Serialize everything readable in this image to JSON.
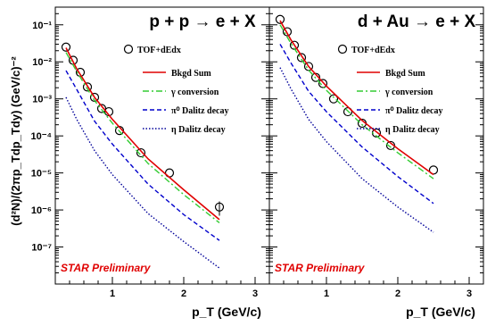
{
  "chart_data": [
    {
      "type": "scatter",
      "title": "p + p → e + X",
      "annotation": "STAR Preliminary",
      "xlabel": "p_T (GeV/c)",
      "ylabel": "(d²N)/(2πp_Tdp_Tdy) (GeV/c)⁻²",
      "xlim": [
        0.2,
        3.2
      ],
      "ylim": [
        1e-08,
        0.3
      ],
      "yscale": "log",
      "xticks": [
        1,
        2,
        3
      ],
      "yticks": [
        1e-07,
        1e-06,
        1e-05,
        0.0001,
        0.001,
        0.01,
        0.1
      ],
      "ytick_labels": [
        "10⁻⁷",
        "10⁻⁶",
        "10⁻⁵",
        "10⁻⁴",
        "10⁻³",
        "10⁻²",
        "10⁻¹"
      ],
      "legend_position": "top-right",
      "series": [
        {
          "name": "TOF+dEdx",
          "style": "open-circle",
          "color": "#000000",
          "x": [
            0.35,
            0.45,
            0.55,
            0.65,
            0.75,
            0.85,
            0.95,
            1.1,
            1.4,
            1.8,
            2.5
          ],
          "y": [
            0.025,
            0.011,
            0.0052,
            0.0021,
            0.0011,
            0.00055,
            0.00045,
            0.00014,
            3.5e-05,
            1e-05,
            1.2e-06
          ],
          "yerr": [
            0,
            0,
            0,
            0,
            0,
            0,
            0,
            0,
            0,
            0,
            5e-07
          ]
        },
        {
          "name": "Bkgd Sum",
          "style": "solid",
          "color": "#e00000",
          "x": [
            0.35,
            0.5,
            0.75,
            1.0,
            1.5,
            2.0,
            2.5
          ],
          "y": [
            0.024,
            0.0065,
            0.0011,
            0.00028,
            2.4e-05,
            3.5e-06,
            5.5e-07
          ]
        },
        {
          "name": "γ conversion",
          "style": "dash-dot",
          "color": "#33cc33",
          "x": [
            0.35,
            0.5,
            0.75,
            1.0,
            1.5,
            2.0,
            2.5
          ],
          "y": [
            0.018,
            0.0055,
            0.0009,
            0.00022,
            1.8e-05,
            2.6e-06,
            4.5e-07
          ]
        },
        {
          "name": "π⁰ Dalitz decay",
          "style": "dashed",
          "color": "#0000cc",
          "x": [
            0.35,
            0.5,
            0.75,
            1.0,
            1.5,
            2.0,
            2.5
          ],
          "y": [
            0.0058,
            0.0018,
            0.00025,
            6e-05,
            5e-06,
            7.5e-07,
            1.5e-07
          ]
        },
        {
          "name": "η Dalitz decay",
          "style": "dotted",
          "color": "#000099",
          "x": [
            0.35,
            0.5,
            0.75,
            1.0,
            1.5,
            2.0,
            2.5
          ],
          "y": [
            0.0011,
            0.00028,
            4e-05,
            9e-06,
            8e-07,
            1.4e-07,
            2.7e-08
          ]
        }
      ]
    },
    {
      "type": "scatter",
      "title": "d + Au → e + X",
      "annotation": "STAR Preliminary",
      "xlabel": "p_T (GeV/c)",
      "ylabel": "",
      "xlim": [
        0.2,
        3.2
      ],
      "ylim": [
        1e-08,
        0.3
      ],
      "yscale": "log",
      "xticks": [
        1,
        2,
        3
      ],
      "legend_position": "top-right",
      "series": [
        {
          "name": "TOF+dEdx",
          "style": "open-circle",
          "color": "#000000",
          "x": [
            0.35,
            0.45,
            0.55,
            0.65,
            0.75,
            0.85,
            0.95,
            1.1,
            1.3,
            1.5,
            1.7,
            1.9,
            2.5
          ],
          "y": [
            0.14,
            0.065,
            0.028,
            0.013,
            0.0075,
            0.0038,
            0.0026,
            0.001,
            0.00045,
            0.00022,
            0.00012,
            5.5e-05,
            1.2e-05
          ],
          "yerr": [
            0,
            0,
            0,
            0,
            0,
            0,
            0,
            0,
            0,
            0,
            0,
            0,
            0
          ]
        },
        {
          "name": "Bkgd Sum",
          "style": "solid",
          "color": "#e00000",
          "x": [
            0.35,
            0.5,
            0.75,
            1.0,
            1.5,
            2.0,
            2.5
          ],
          "y": [
            0.13,
            0.04,
            0.0075,
            0.0022,
            0.00026,
            4.5e-05,
            9e-06
          ]
        },
        {
          "name": "γ conversion",
          "style": "dash-dot",
          "color": "#33cc33",
          "x": [
            0.35,
            0.5,
            0.75,
            1.0,
            1.5,
            2.0,
            2.5
          ],
          "y": [
            0.1,
            0.032,
            0.006,
            0.0017,
            0.0002,
            3.5e-05,
            7e-06
          ]
        },
        {
          "name": "π⁰ Dalitz decay",
          "style": "dashed",
          "color": "#0000cc",
          "x": [
            0.35,
            0.5,
            0.75,
            1.0,
            1.5,
            2.0,
            2.5
          ],
          "y": [
            0.03,
            0.0095,
            0.0016,
            0.00045,
            5e-05,
            8e-06,
            1.5e-06
          ]
        },
        {
          "name": "η Dalitz decay",
          "style": "dotted",
          "color": "#000099",
          "x": [
            0.35,
            0.5,
            0.75,
            1.0,
            1.5,
            2.0,
            2.5
          ],
          "y": [
            0.007,
            0.0019,
            0.00028,
            7e-05,
            7e-06,
            1.2e-06,
            2.5e-07
          ]
        }
      ]
    }
  ]
}
